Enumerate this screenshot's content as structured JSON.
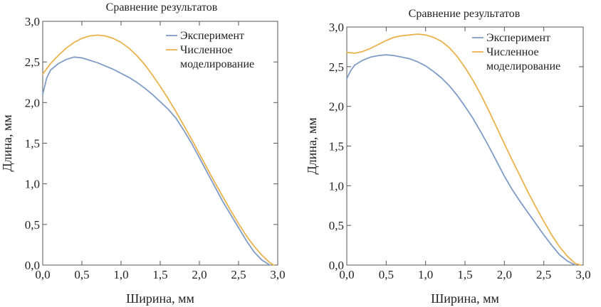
{
  "colors": {
    "experiment": "#7f9cc7",
    "simulation": "#eab24a",
    "frame": "#555555"
  },
  "chart_data": [
    {
      "type": "line",
      "title": "Сравнение результатов",
      "xlabel": "Ширина, мм",
      "ylabel": "Длина, мм",
      "xlim": [
        0,
        3
      ],
      "ylim": [
        0,
        3
      ],
      "xticks": [
        "0,0",
        "0,5",
        "1,0",
        "1,5",
        "2,0",
        "2,5",
        "3,0"
      ],
      "yticks": [
        "0,0",
        "0,5",
        "1,0",
        "1,5",
        "2,0",
        "2,5",
        "3,0"
      ],
      "grid": false,
      "legend_position": "top-right",
      "series": [
        {
          "name": "Эксперимент",
          "color_key": "experiment",
          "x": [
            0.0,
            0.05,
            0.1,
            0.2,
            0.3,
            0.4,
            0.5,
            0.6,
            0.7,
            0.8,
            0.9,
            1.0,
            1.1,
            1.2,
            1.3,
            1.4,
            1.5,
            1.6,
            1.7,
            1.8,
            1.9,
            2.0,
            2.1,
            2.2,
            2.3,
            2.4,
            2.5,
            2.6,
            2.7,
            2.8,
            2.9
          ],
          "y": [
            2.1,
            2.3,
            2.4,
            2.48,
            2.53,
            2.56,
            2.55,
            2.52,
            2.49,
            2.45,
            2.41,
            2.36,
            2.31,
            2.25,
            2.18,
            2.1,
            2.01,
            1.92,
            1.81,
            1.66,
            1.5,
            1.32,
            1.14,
            0.96,
            0.78,
            0.62,
            0.46,
            0.3,
            0.16,
            0.06,
            0.0
          ]
        },
        {
          "name": "Численное моделирование",
          "color_key": "simulation",
          "x": [
            0.0,
            0.1,
            0.2,
            0.3,
            0.4,
            0.5,
            0.6,
            0.7,
            0.8,
            0.9,
            1.0,
            1.1,
            1.2,
            1.3,
            1.4,
            1.5,
            1.6,
            1.7,
            1.8,
            1.9,
            2.0,
            2.1,
            2.2,
            2.3,
            2.4,
            2.5,
            2.6,
            2.7,
            2.8,
            2.9,
            2.95
          ],
          "y": [
            2.35,
            2.48,
            2.58,
            2.67,
            2.74,
            2.79,
            2.82,
            2.83,
            2.82,
            2.79,
            2.74,
            2.67,
            2.58,
            2.47,
            2.34,
            2.2,
            2.05,
            1.89,
            1.72,
            1.55,
            1.37,
            1.19,
            1.01,
            0.84,
            0.67,
            0.51,
            0.36,
            0.23,
            0.12,
            0.03,
            0.0
          ]
        }
      ]
    },
    {
      "type": "line",
      "title": "Сравнение результатов",
      "xlabel": "Ширина, мм",
      "ylabel": "Длина, мм",
      "xlim": [
        0,
        3
      ],
      "ylim": [
        0,
        3
      ],
      "xticks": [
        "0,0",
        "0,5",
        "1,0",
        "1,5",
        "2,0",
        "2,5",
        "3,0"
      ],
      "yticks": [
        "0,0",
        "0,5",
        "1,0",
        "1,5",
        "2,0",
        "2,5",
        "3,0"
      ],
      "grid": false,
      "legend_position": "top-right",
      "series": [
        {
          "name": "Эксперимент",
          "color_key": "experiment",
          "x": [
            0.0,
            0.05,
            0.1,
            0.2,
            0.3,
            0.4,
            0.5,
            0.6,
            0.7,
            0.8,
            0.9,
            1.0,
            1.1,
            1.2,
            1.3,
            1.4,
            1.5,
            1.6,
            1.7,
            1.8,
            1.9,
            2.0,
            2.1,
            2.2,
            2.3,
            2.4,
            2.5,
            2.6,
            2.7,
            2.8,
            2.9
          ],
          "y": [
            2.35,
            2.45,
            2.52,
            2.58,
            2.62,
            2.64,
            2.65,
            2.64,
            2.62,
            2.6,
            2.56,
            2.51,
            2.44,
            2.36,
            2.26,
            2.14,
            2.0,
            1.85,
            1.68,
            1.5,
            1.31,
            1.12,
            0.95,
            0.8,
            0.66,
            0.52,
            0.38,
            0.25,
            0.13,
            0.05,
            0.0
          ]
        },
        {
          "name": "Численное моделирование",
          "color_key": "simulation",
          "x": [
            0.0,
            0.1,
            0.2,
            0.3,
            0.4,
            0.5,
            0.6,
            0.7,
            0.8,
            0.9,
            1.0,
            1.1,
            1.2,
            1.3,
            1.4,
            1.5,
            1.6,
            1.7,
            1.8,
            1.9,
            2.0,
            2.1,
            2.2,
            2.3,
            2.4,
            2.5,
            2.6,
            2.7,
            2.8,
            2.9,
            2.97
          ],
          "y": [
            2.68,
            2.67,
            2.69,
            2.73,
            2.78,
            2.83,
            2.87,
            2.89,
            2.9,
            2.91,
            2.9,
            2.87,
            2.82,
            2.74,
            2.63,
            2.49,
            2.33,
            2.15,
            1.95,
            1.74,
            1.53,
            1.32,
            1.12,
            0.92,
            0.73,
            0.55,
            0.38,
            0.23,
            0.11,
            0.02,
            0.0
          ]
        }
      ]
    }
  ]
}
